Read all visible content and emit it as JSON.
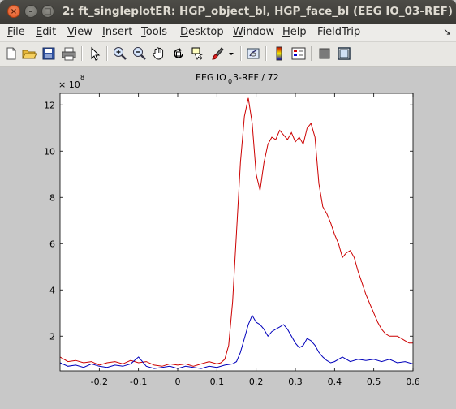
{
  "window": {
    "title": "2: ft_singleplotER: HGP_object_bl, HGP_face_bl (EEG IO_03-REF)",
    "close_glyph": "×",
    "min_glyph": "–",
    "max_glyph": "□"
  },
  "menubar": {
    "items": [
      {
        "label": "File",
        "mnemonic": "F",
        "rest": "ile"
      },
      {
        "label": "Edit",
        "mnemonic": "E",
        "rest": "dit"
      },
      {
        "label": "View",
        "mnemonic": "V",
        "rest": "iew"
      },
      {
        "label": "Insert",
        "mnemonic": "I",
        "rest": "nsert"
      },
      {
        "label": "Tools",
        "mnemonic": "T",
        "rest": "ools"
      },
      {
        "label": "Desktop",
        "mnemonic": "D",
        "rest": "esktop"
      },
      {
        "label": "Window",
        "mnemonic": "W",
        "rest": "indow"
      },
      {
        "label": "Help",
        "mnemonic": "H",
        "rest": "elp"
      },
      {
        "label": "FieldTrip",
        "mnemonic": "",
        "rest": "FieldTrip"
      }
    ],
    "dock_glyph": "↘"
  },
  "toolbar": {
    "icons": [
      "new-file-icon",
      "open-file-icon",
      "save-icon",
      "print-icon",
      "pointer-icon",
      "zoom-in-icon",
      "zoom-out-icon",
      "pan-icon",
      "rotate-icon",
      "data-cursor-icon",
      "brush-icon",
      "brush-dropdown-icon",
      "link-plot-icon",
      "colorbar-icon",
      "legend-icon",
      "hide-plot-tools-icon",
      "show-plot-tools-icon"
    ]
  },
  "chart_data": {
    "type": "line",
    "title_main": "EEG IO",
    "title_sub": "0",
    "title_rest": "3-REF / 72",
    "exponent_prefix": "× 10",
    "exponent": "8",
    "xlim": [
      -0.3,
      0.6
    ],
    "ylim": [
      0.5,
      12.5
    ],
    "x_ticks": [
      -0.2,
      -0.1,
      0,
      0.1,
      0.2,
      0.3,
      0.4,
      0.5,
      0.6
    ],
    "x_tick_labels": [
      "-0.2",
      "-0.1",
      "0",
      "0.1",
      "0.2",
      "0.3",
      "0.4",
      "0.5",
      "0.6"
    ],
    "y_ticks": [
      2,
      4,
      6,
      8,
      10,
      12
    ],
    "y_tick_labels": [
      "2",
      "4",
      "6",
      "8",
      "10",
      "12"
    ],
    "grid": false,
    "series": [
      {
        "color": "#cc0000",
        "points": [
          [
            -0.3,
            1.1
          ],
          [
            -0.28,
            0.9
          ],
          [
            -0.26,
            0.95
          ],
          [
            -0.24,
            0.85
          ],
          [
            -0.22,
            0.9
          ],
          [
            -0.2,
            0.75
          ],
          [
            -0.18,
            0.85
          ],
          [
            -0.16,
            0.9
          ],
          [
            -0.14,
            0.8
          ],
          [
            -0.12,
            0.95
          ],
          [
            -0.1,
            0.85
          ],
          [
            -0.08,
            0.9
          ],
          [
            -0.06,
            0.75
          ],
          [
            -0.04,
            0.7
          ],
          [
            -0.02,
            0.8
          ],
          [
            0.0,
            0.75
          ],
          [
            0.02,
            0.8
          ],
          [
            0.04,
            0.7
          ],
          [
            0.06,
            0.8
          ],
          [
            0.08,
            0.9
          ],
          [
            0.1,
            0.8
          ],
          [
            0.11,
            0.85
          ],
          [
            0.12,
            1.0
          ],
          [
            0.13,
            1.6
          ],
          [
            0.14,
            3.5
          ],
          [
            0.15,
            6.5
          ],
          [
            0.16,
            9.5
          ],
          [
            0.17,
            11.5
          ],
          [
            0.18,
            12.3
          ],
          [
            0.19,
            11.2
          ],
          [
            0.2,
            9.0
          ],
          [
            0.21,
            8.3
          ],
          [
            0.22,
            9.5
          ],
          [
            0.23,
            10.3
          ],
          [
            0.24,
            10.6
          ],
          [
            0.25,
            10.5
          ],
          [
            0.26,
            10.9
          ],
          [
            0.27,
            10.7
          ],
          [
            0.28,
            10.5
          ],
          [
            0.29,
            10.8
          ],
          [
            0.3,
            10.4
          ],
          [
            0.31,
            10.6
          ],
          [
            0.32,
            10.3
          ],
          [
            0.33,
            11.0
          ],
          [
            0.34,
            11.2
          ],
          [
            0.35,
            10.6
          ],
          [
            0.36,
            8.6
          ],
          [
            0.37,
            7.6
          ],
          [
            0.38,
            7.3
          ],
          [
            0.39,
            6.9
          ],
          [
            0.4,
            6.4
          ],
          [
            0.41,
            6.0
          ],
          [
            0.42,
            5.4
          ],
          [
            0.43,
            5.6
          ],
          [
            0.44,
            5.7
          ],
          [
            0.45,
            5.4
          ],
          [
            0.46,
            4.8
          ],
          [
            0.47,
            4.3
          ],
          [
            0.48,
            3.8
          ],
          [
            0.49,
            3.4
          ],
          [
            0.5,
            3.0
          ],
          [
            0.51,
            2.6
          ],
          [
            0.52,
            2.3
          ],
          [
            0.53,
            2.1
          ],
          [
            0.54,
            2.0
          ],
          [
            0.55,
            2.0
          ],
          [
            0.56,
            2.0
          ],
          [
            0.57,
            1.9
          ],
          [
            0.58,
            1.8
          ],
          [
            0.59,
            1.7
          ],
          [
            0.6,
            1.7
          ]
        ]
      },
      {
        "color": "#0000bb",
        "points": [
          [
            -0.3,
            0.85
          ],
          [
            -0.28,
            0.7
          ],
          [
            -0.26,
            0.75
          ],
          [
            -0.24,
            0.65
          ],
          [
            -0.22,
            0.8
          ],
          [
            -0.2,
            0.7
          ],
          [
            -0.18,
            0.65
          ],
          [
            -0.16,
            0.75
          ],
          [
            -0.14,
            0.7
          ],
          [
            -0.12,
            0.8
          ],
          [
            -0.1,
            1.1
          ],
          [
            -0.08,
            0.7
          ],
          [
            -0.06,
            0.6
          ],
          [
            -0.04,
            0.65
          ],
          [
            -0.02,
            0.7
          ],
          [
            0.0,
            0.6
          ],
          [
            0.02,
            0.7
          ],
          [
            0.04,
            0.65
          ],
          [
            0.06,
            0.6
          ],
          [
            0.08,
            0.7
          ],
          [
            0.1,
            0.65
          ],
          [
            0.12,
            0.75
          ],
          [
            0.14,
            0.8
          ],
          [
            0.15,
            0.9
          ],
          [
            0.16,
            1.3
          ],
          [
            0.17,
            1.9
          ],
          [
            0.18,
            2.5
          ],
          [
            0.19,
            2.9
          ],
          [
            0.2,
            2.6
          ],
          [
            0.21,
            2.5
          ],
          [
            0.22,
            2.3
          ],
          [
            0.23,
            2.0
          ],
          [
            0.24,
            2.2
          ],
          [
            0.25,
            2.3
          ],
          [
            0.26,
            2.4
          ],
          [
            0.27,
            2.5
          ],
          [
            0.28,
            2.3
          ],
          [
            0.29,
            2.0
          ],
          [
            0.3,
            1.7
          ],
          [
            0.31,
            1.5
          ],
          [
            0.32,
            1.6
          ],
          [
            0.33,
            1.9
          ],
          [
            0.34,
            1.8
          ],
          [
            0.35,
            1.6
          ],
          [
            0.36,
            1.3
          ],
          [
            0.37,
            1.1
          ],
          [
            0.38,
            0.95
          ],
          [
            0.39,
            0.85
          ],
          [
            0.4,
            0.9
          ],
          [
            0.42,
            1.1
          ],
          [
            0.44,
            0.9
          ],
          [
            0.46,
            1.0
          ],
          [
            0.48,
            0.95
          ],
          [
            0.5,
            1.0
          ],
          [
            0.52,
            0.9
          ],
          [
            0.54,
            1.0
          ],
          [
            0.56,
            0.85
          ],
          [
            0.58,
            0.9
          ],
          [
            0.6,
            0.8
          ]
        ]
      }
    ]
  }
}
